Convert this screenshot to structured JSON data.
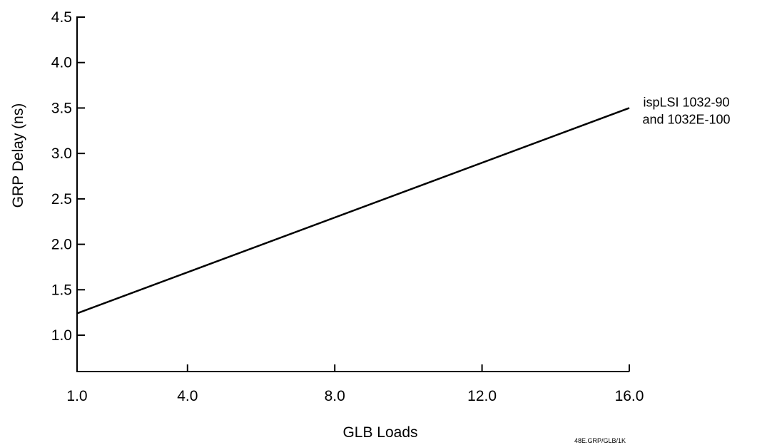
{
  "chart_data": {
    "type": "line",
    "title": "",
    "xlabel": "GLB Loads",
    "ylabel": "GRP Delay (ns)",
    "xlim": [
      1.0,
      16.0
    ],
    "ylim": [
      0.6,
      4.5
    ],
    "x_ticks": [
      1.0,
      4.0,
      8.0,
      12.0,
      16.0
    ],
    "x_tick_labels": [
      "1.0",
      "4.0",
      "8.0",
      "12.0",
      "16.0"
    ],
    "y_ticks": [
      1.0,
      1.5,
      2.0,
      2.5,
      3.0,
      3.5,
      4.0,
      4.5
    ],
    "y_tick_labels": [
      "1.0",
      "1.5",
      "2.0",
      "2.5",
      "3.0",
      "3.5",
      "4.0",
      "4.5"
    ],
    "grid": false,
    "series": [
      {
        "name_lines": [
          "ispLSI 1032-90",
          "and 1032E-100"
        ],
        "x": [
          1.0,
          16.0
        ],
        "y": [
          1.24,
          3.5
        ],
        "color": "#000000"
      }
    ],
    "annotations": [
      "48E.GRP/GLB/1K"
    ]
  }
}
